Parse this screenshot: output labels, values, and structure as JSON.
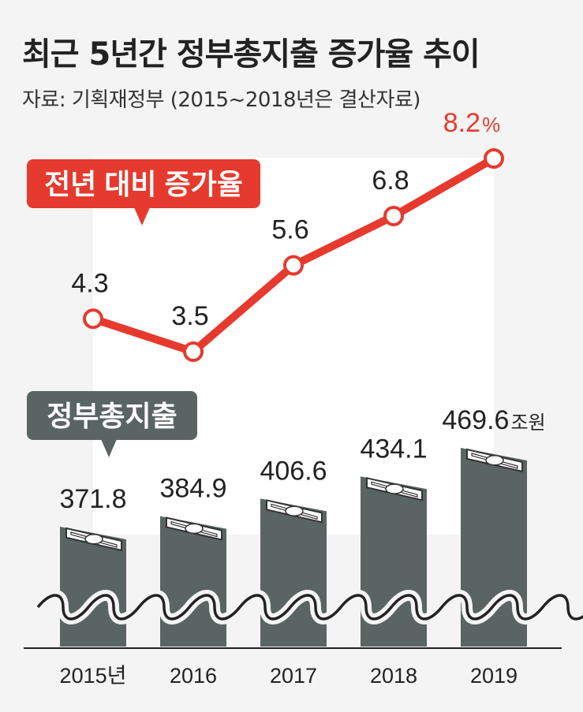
{
  "header": {
    "title": "최근 5년간 정부총지출 증가율 추이",
    "source": "자료: 기획재정부 (2015~2018년은 결산자료)"
  },
  "colors": {
    "background": "#f4f4f4",
    "line": "#e63a2e",
    "bar": "#5a6463",
    "panel": "#ffffff",
    "label_box_line": "#e63a2e",
    "label_box_bar": "#5a6463"
  },
  "chart_data": [
    {
      "type": "line",
      "title": "전년 대비 증가율",
      "categories": [
        "2015년",
        "2016",
        "2017",
        "2018",
        "2019"
      ],
      "values": [
        4.3,
        3.5,
        5.6,
        6.8,
        8.2
      ],
      "value_labels": [
        "4.3",
        "3.5",
        "5.6",
        "6.8",
        "8.2"
      ],
      "last_label_unit": "%"
    },
    {
      "type": "bar",
      "title": "정부총지출",
      "categories": [
        "2015년",
        "2016",
        "2017",
        "2018",
        "2019"
      ],
      "values": [
        371.8,
        384.9,
        406.6,
        434.1,
        469.6
      ],
      "value_labels": [
        "371.8",
        "384.9",
        "406.6",
        "434.1",
        "469.6"
      ],
      "last_label_unit": "조원",
      "axis_break": true
    }
  ]
}
